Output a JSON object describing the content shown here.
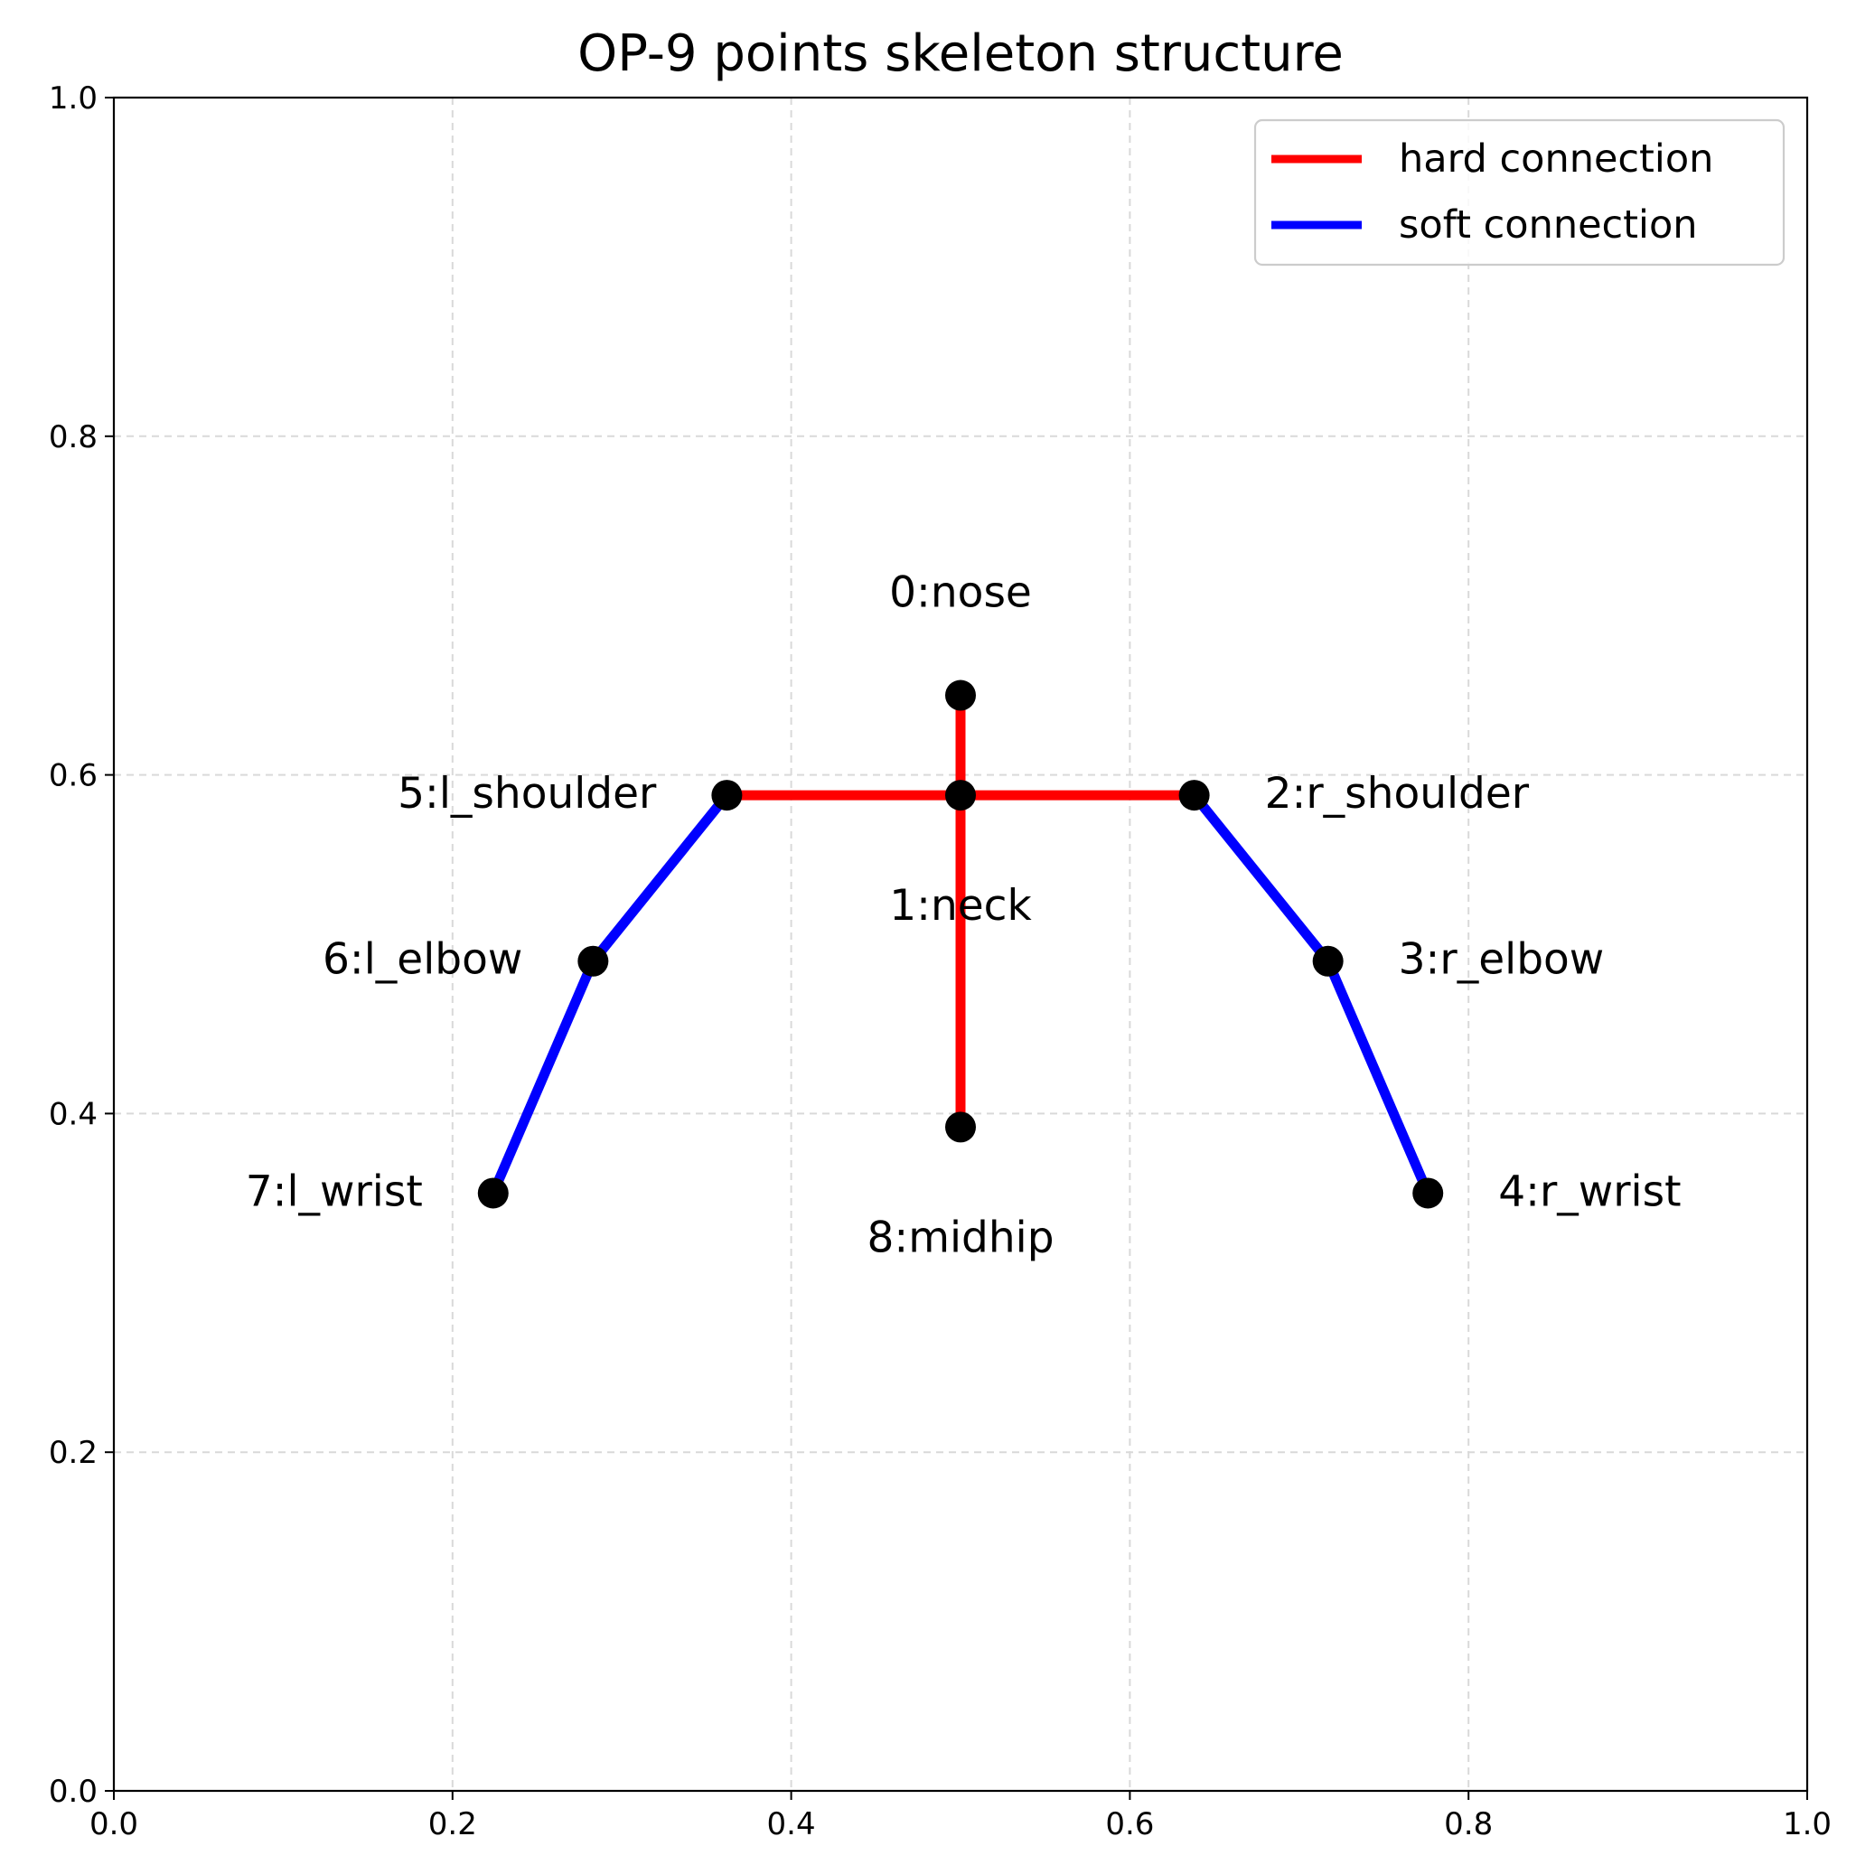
{
  "chart_data": {
    "type": "scatter",
    "title": "OP-9 points skeleton structure",
    "xlabel": "",
    "ylabel": "",
    "xlim": [
      0.0,
      1.0
    ],
    "ylim": [
      0.0,
      1.0
    ],
    "grid": true,
    "x_ticks": [
      0.0,
      0.2,
      0.4,
      0.6,
      0.8,
      1.0
    ],
    "y_ticks": [
      0.0,
      0.2,
      0.4,
      0.6,
      0.8,
      1.0
    ],
    "x_tick_labels": [
      "0.0",
      "0.2",
      "0.4",
      "0.6",
      "0.8",
      "1.0"
    ],
    "y_tick_labels": [
      "0.0",
      "0.2",
      "0.4",
      "0.6",
      "0.8",
      "1.0"
    ],
    "points": [
      {
        "id": 0,
        "label": "0:nose",
        "x": 0.5,
        "y": 0.647,
        "label_pos": "above"
      },
      {
        "id": 1,
        "label": "1:neck",
        "x": 0.5,
        "y": 0.588,
        "label_pos": "below"
      },
      {
        "id": 2,
        "label": "2:r_shoulder",
        "x": 0.638,
        "y": 0.588,
        "label_pos": "right"
      },
      {
        "id": 3,
        "label": "3:r_elbow",
        "x": 0.717,
        "y": 0.49,
        "label_pos": "right"
      },
      {
        "id": 4,
        "label": "4:r_wrist",
        "x": 0.776,
        "y": 0.353,
        "label_pos": "right"
      },
      {
        "id": 5,
        "label": "5:l_shoulder",
        "x": 0.362,
        "y": 0.588,
        "label_pos": "left"
      },
      {
        "id": 6,
        "label": "6:l_elbow",
        "x": 0.283,
        "y": 0.49,
        "label_pos": "left"
      },
      {
        "id": 7,
        "label": "7:l_wrist",
        "x": 0.224,
        "y": 0.353,
        "label_pos": "left"
      },
      {
        "id": 8,
        "label": "8:midhip",
        "x": 0.5,
        "y": 0.392,
        "label_pos": "below"
      }
    ],
    "hard_connections": [
      [
        0,
        1
      ],
      [
        1,
        2
      ],
      [
        1,
        5
      ],
      [
        1,
        8
      ]
    ],
    "soft_connections": [
      [
        2,
        3
      ],
      [
        3,
        4
      ],
      [
        5,
        6
      ],
      [
        6,
        7
      ]
    ],
    "legend": {
      "placement": "top-right",
      "entries": [
        {
          "label": "hard connection",
          "color": "#ff0000"
        },
        {
          "label": "soft connection",
          "color": "#0000ff"
        }
      ]
    },
    "colors": {
      "hard": "#ff0000",
      "soft": "#0000ff",
      "joint": "#000000",
      "grid": "#d9d9d9"
    }
  }
}
